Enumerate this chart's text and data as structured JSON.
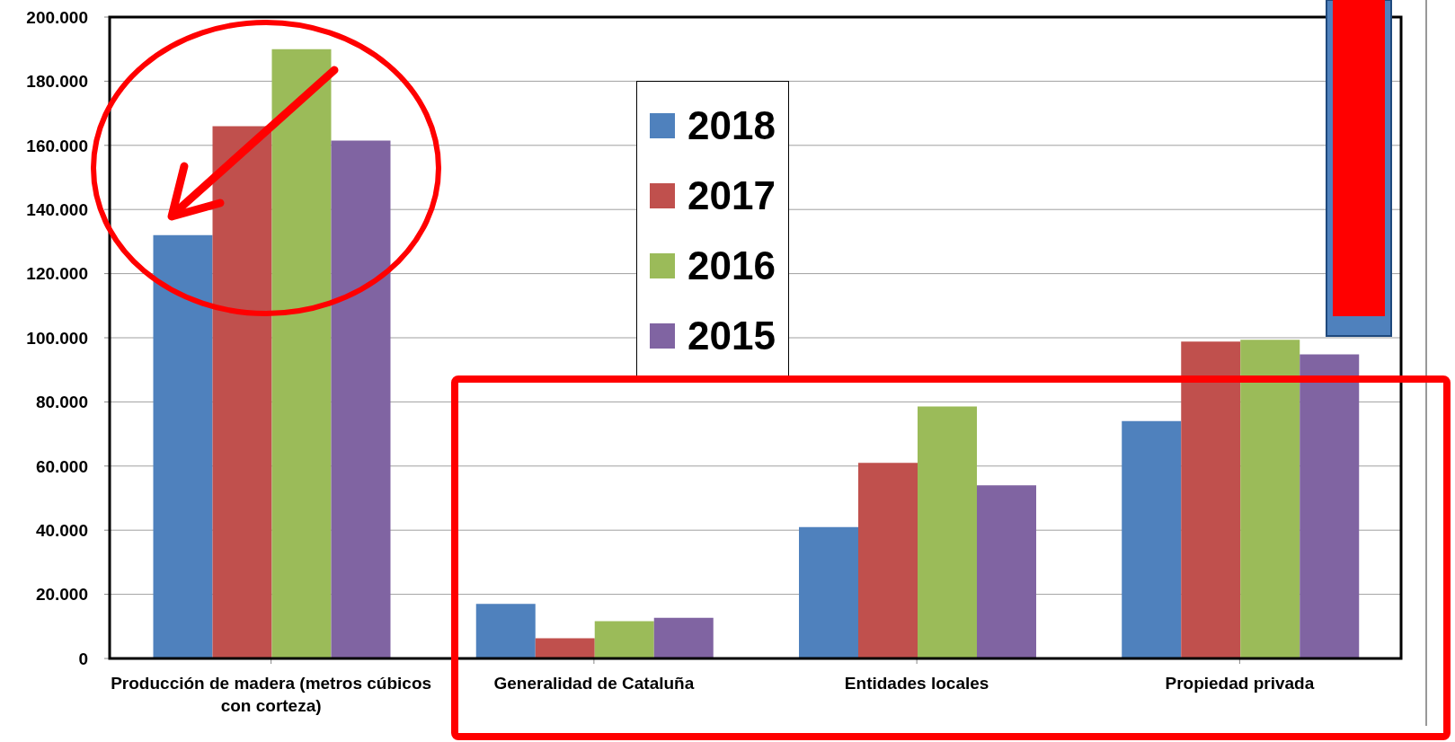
{
  "chart_data": {
    "type": "bar",
    "categories": [
      "Producción de madera (metros cúbicos con corteza)",
      "Generalidad de Cataluña",
      "Entidades locales",
      "Propiedad privada"
    ],
    "series": [
      {
        "name": "2018",
        "color": "#4f81bd",
        "values": [
          132000,
          17000,
          41000,
          74000
        ]
      },
      {
        "name": "2017",
        "color": "#c0504d",
        "values": [
          166000,
          6300,
          61000,
          98800
        ]
      },
      {
        "name": "2016",
        "color": "#9bbb59",
        "values": [
          190000,
          11600,
          78600,
          99400
        ]
      },
      {
        "name": "2015",
        "color": "#8064a2",
        "values": [
          161500,
          12700,
          54000,
          94800
        ]
      }
    ],
    "ylim": [
      0,
      200000
    ],
    "yticks": [
      {
        "value": 0,
        "label": "0"
      },
      {
        "value": 20000,
        "label": "20.000"
      },
      {
        "value": 40000,
        "label": "40.000"
      },
      {
        "value": 60000,
        "label": "60.000"
      },
      {
        "value": 80000,
        "label": "80.000"
      },
      {
        "value": 100000,
        "label": "100.000"
      },
      {
        "value": 120000,
        "label": "120.000"
      },
      {
        "value": 140000,
        "label": "140.000"
      },
      {
        "value": 160000,
        "label": "160.000"
      },
      {
        "value": 180000,
        "label": "180.000"
      },
      {
        "value": 200000,
        "label": "200.000"
      }
    ],
    "grid": "y",
    "legend": "top"
  }
}
